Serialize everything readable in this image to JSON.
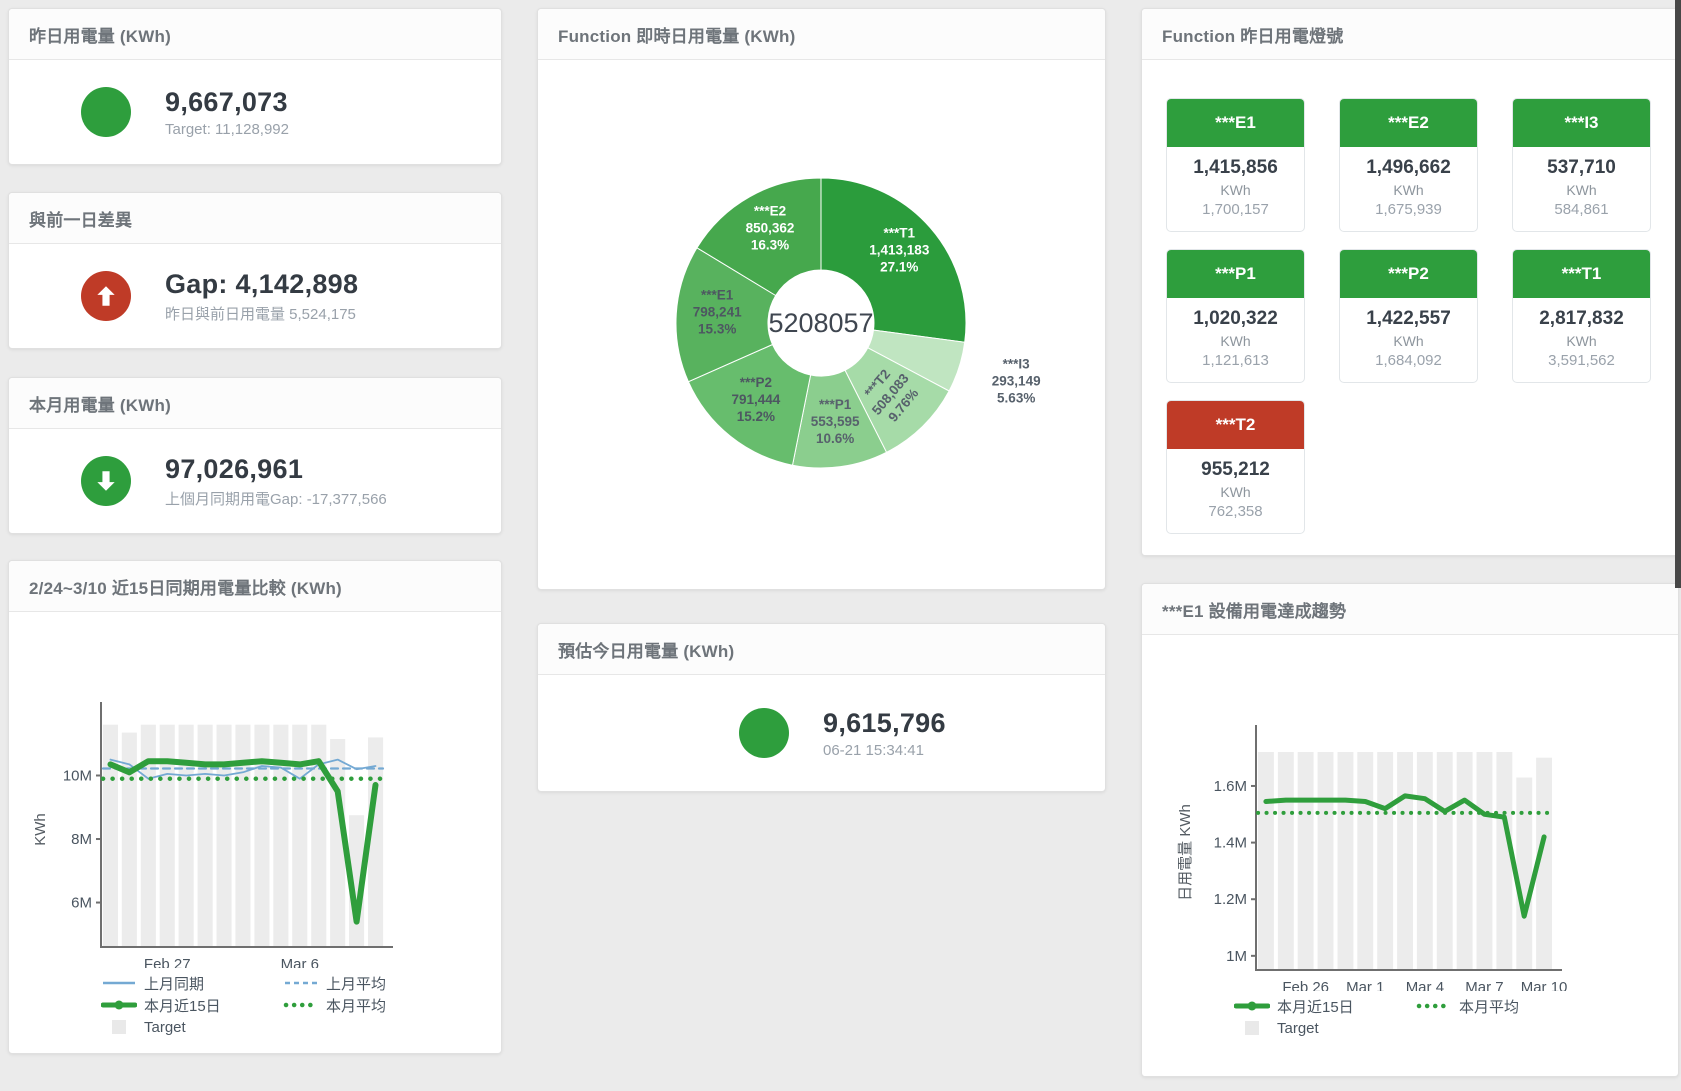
{
  "colors": {
    "green": "#2e9e3d",
    "red": "#bf3b27",
    "bar": "#ececec",
    "blue_line": "#74a9d3",
    "green_line": "#2f9e3c"
  },
  "cards": {
    "yesterday": {
      "title": "昨日用電量 (KWh)",
      "value": "9,667,073",
      "subtext": "Target: 11,128,992",
      "indicator": {
        "color": "#2e9e3d",
        "arrow": "none"
      }
    },
    "day_gap": {
      "title": "與前一日差異",
      "value": "Gap: 4,142,898",
      "subtext": "昨日與前日用電量 5,524,175",
      "indicator": {
        "color": "#bf3b27",
        "arrow": "up"
      }
    },
    "month": {
      "title": "本月用電量 (KWh)",
      "value": "97,026,961",
      "subtext": "上個月同期用電Gap: -17,377,566",
      "indicator": {
        "color": "#2e9e3d",
        "arrow": "down"
      }
    },
    "estimate": {
      "title": "預估今日用電量 (KWh)",
      "value": "9,615,796",
      "subtext": "06-21 15:34:41",
      "indicator": {
        "color": "#2e9e3d",
        "arrow": "none"
      }
    },
    "lights": {
      "title": "Function 昨日用電燈號",
      "tiles": [
        {
          "code": "***E1",
          "value": "1,415,856",
          "unit": "KWh",
          "target": "1,700,157",
          "color": "#2e9e3d"
        },
        {
          "code": "***E2",
          "value": "1,496,662",
          "unit": "KWh",
          "target": "1,675,939",
          "color": "#2e9e3d"
        },
        {
          "code": "***I3",
          "value": "537,710",
          "unit": "KWh",
          "target": "584,861",
          "color": "#2e9e3d"
        },
        {
          "code": "***P1",
          "value": "1,020,322",
          "unit": "KWh",
          "target": "1,121,613",
          "color": "#2e9e3d"
        },
        {
          "code": "***P2",
          "value": "1,422,557",
          "unit": "KWh",
          "target": "1,684,092",
          "color": "#2e9e3d"
        },
        {
          "code": "***T1",
          "value": "2,817,832",
          "unit": "KWh",
          "target": "3,591,562",
          "color": "#2e9e3d"
        },
        {
          "code": "***T2",
          "value": "955,212",
          "unit": "KWh",
          "target": "762,358",
          "color": "#bf3b27"
        }
      ]
    }
  },
  "chart_data": [
    {
      "type": "pie",
      "title": "Function 即時日用電量 (KWh)",
      "center_label": "5208057",
      "legend_position": "none",
      "slices": [
        {
          "name": "***T1",
          "value": 1413183,
          "value_label": "1,413,183",
          "pct": 27.1,
          "pct_label": "27.1%",
          "color": "#2b9c3c",
          "text": "#ffffff"
        },
        {
          "name": "***I3",
          "value": 293149,
          "value_label": "293,149",
          "pct": 5.63,
          "pct_label": "5.63%",
          "color": "#c0e5c1",
          "text": "#57616c",
          "outside": true
        },
        {
          "name": "***T2",
          "value": 508083,
          "value_label": "508,083",
          "pct": 9.76,
          "pct_label": "9.76%",
          "color": "#a6dba8",
          "text": "#57616c",
          "rotate": -50
        },
        {
          "name": "***P1",
          "value": 553595,
          "value_label": "553,595",
          "pct": 10.6,
          "pct_label": "10.6%",
          "color": "#8bce8e",
          "text": "#57616c"
        },
        {
          "name": "***P2",
          "value": 791444,
          "value_label": "791,444",
          "pct": 15.2,
          "pct_label": "15.2%",
          "color": "#67bd6d",
          "text": "#4d5761"
        },
        {
          "name": "***E1",
          "value": 798241,
          "value_label": "798,241",
          "pct": 15.3,
          "pct_label": "15.3%",
          "color": "#58b25e",
          "text": "#4d5761"
        },
        {
          "name": "***E2",
          "value": 850362,
          "value_label": "850,362",
          "pct": 16.3,
          "pct_label": "16.3%",
          "color": "#46a84d",
          "text": "#ffffff"
        }
      ]
    },
    {
      "type": "line",
      "title": "2/24~3/10 近15日同期用電量比較 (KWh)",
      "ylabel": "KWh",
      "ylim": [
        4.6,
        12.0
      ],
      "grid": false,
      "yticks": [
        {
          "v": 6,
          "label": "6M"
        },
        {
          "v": 8,
          "label": "8M"
        },
        {
          "v": 10,
          "label": "10M"
        }
      ],
      "x_ticks": [
        {
          "index": 3,
          "label": "Feb 27"
        },
        {
          "index": 10,
          "label": "Mar 6"
        }
      ],
      "target": {
        "name": "Target",
        "color": "#ececec",
        "values": [
          11.6,
          11.35,
          11.6,
          11.6,
          11.6,
          11.6,
          11.6,
          11.6,
          11.6,
          11.6,
          11.6,
          11.6,
          11.15,
          8.75,
          11.2
        ]
      },
      "series": [
        {
          "name": "上月同期",
          "color": "#74a9d3",
          "style": "solid",
          "width": 1.8,
          "values": [
            10.5,
            10.35,
            9.9,
            10.05,
            10.0,
            10.05,
            10.0,
            10.1,
            10.3,
            10.25,
            9.9,
            10.35,
            10.5,
            10.2,
            10.3
          ]
        },
        {
          "name": "上月平均",
          "color": "#74a9d3",
          "style": "dashed",
          "width": 2.2,
          "constant": 10.22
        },
        {
          "name": "本月近15日",
          "color": "#2f9e3c",
          "style": "solid",
          "width": 6,
          "values": [
            10.35,
            10.1,
            10.45,
            10.45,
            10.4,
            10.35,
            10.35,
            10.4,
            10.45,
            10.4,
            10.35,
            10.45,
            9.5,
            5.4,
            9.7
          ]
        },
        {
          "name": "本月平均",
          "color": "#2f9e3c",
          "style": "dotted",
          "width": 4.5,
          "constant": 9.9
        }
      ],
      "legend": [
        [
          {
            "label": "上月同期",
            "swatch": "line",
            "color": "#74a9d3"
          },
          {
            "label": "上月平均",
            "swatch": "dashed",
            "color": "#74a9d3"
          }
        ],
        [
          {
            "label": "本月近15日",
            "swatch": "thick",
            "color": "#2f9e3c"
          },
          {
            "label": "本月平均",
            "swatch": "dotted",
            "color": "#2f9e3c"
          }
        ],
        [
          {
            "label": "Target",
            "swatch": "square",
            "color": "#e9e9e9"
          }
        ]
      ]
    },
    {
      "type": "line",
      "title": "***E1 設備用電達成趨勢",
      "ylabel": "日用電量 KWh",
      "ylim": [
        0.95,
        1.78
      ],
      "grid": false,
      "yticks": [
        {
          "v": 1,
          "label": "1M"
        },
        {
          "v": 1.2,
          "label": "1.2M"
        },
        {
          "v": 1.4,
          "label": "1.4M"
        },
        {
          "v": 1.6,
          "label": "1.6M"
        }
      ],
      "x_ticks": [
        {
          "index": 2,
          "label": "Feb 26"
        },
        {
          "index": 5,
          "label": "Mar 1"
        },
        {
          "index": 8,
          "label": "Mar 4"
        },
        {
          "index": 11,
          "label": "Mar 7"
        },
        {
          "index": 14,
          "label": "Mar 10"
        }
      ],
      "target": {
        "name": "Target",
        "color": "#ececec",
        "values": [
          1.72,
          1.72,
          1.72,
          1.72,
          1.72,
          1.72,
          1.72,
          1.72,
          1.72,
          1.72,
          1.72,
          1.72,
          1.72,
          1.63,
          1.7
        ]
      },
      "series": [
        {
          "name": "本月近15日",
          "color": "#2f9e3c",
          "style": "solid",
          "width": 5,
          "values": [
            1.545,
            1.55,
            1.55,
            1.55,
            1.55,
            1.545,
            1.52,
            1.565,
            1.555,
            1.51,
            1.55,
            1.5,
            1.49,
            1.14,
            1.42
          ]
        },
        {
          "name": "本月平均",
          "color": "#2f9e3c",
          "style": "dotted",
          "width": 4,
          "constant": 1.505
        }
      ],
      "legend": [
        [
          {
            "label": "本月近15日",
            "swatch": "thick",
            "color": "#2f9e3c"
          },
          {
            "label": "本月平均",
            "swatch": "dotted",
            "color": "#2f9e3c"
          }
        ],
        [
          {
            "label": "Target",
            "swatch": "square",
            "color": "#e9e9e9"
          }
        ]
      ]
    }
  ]
}
